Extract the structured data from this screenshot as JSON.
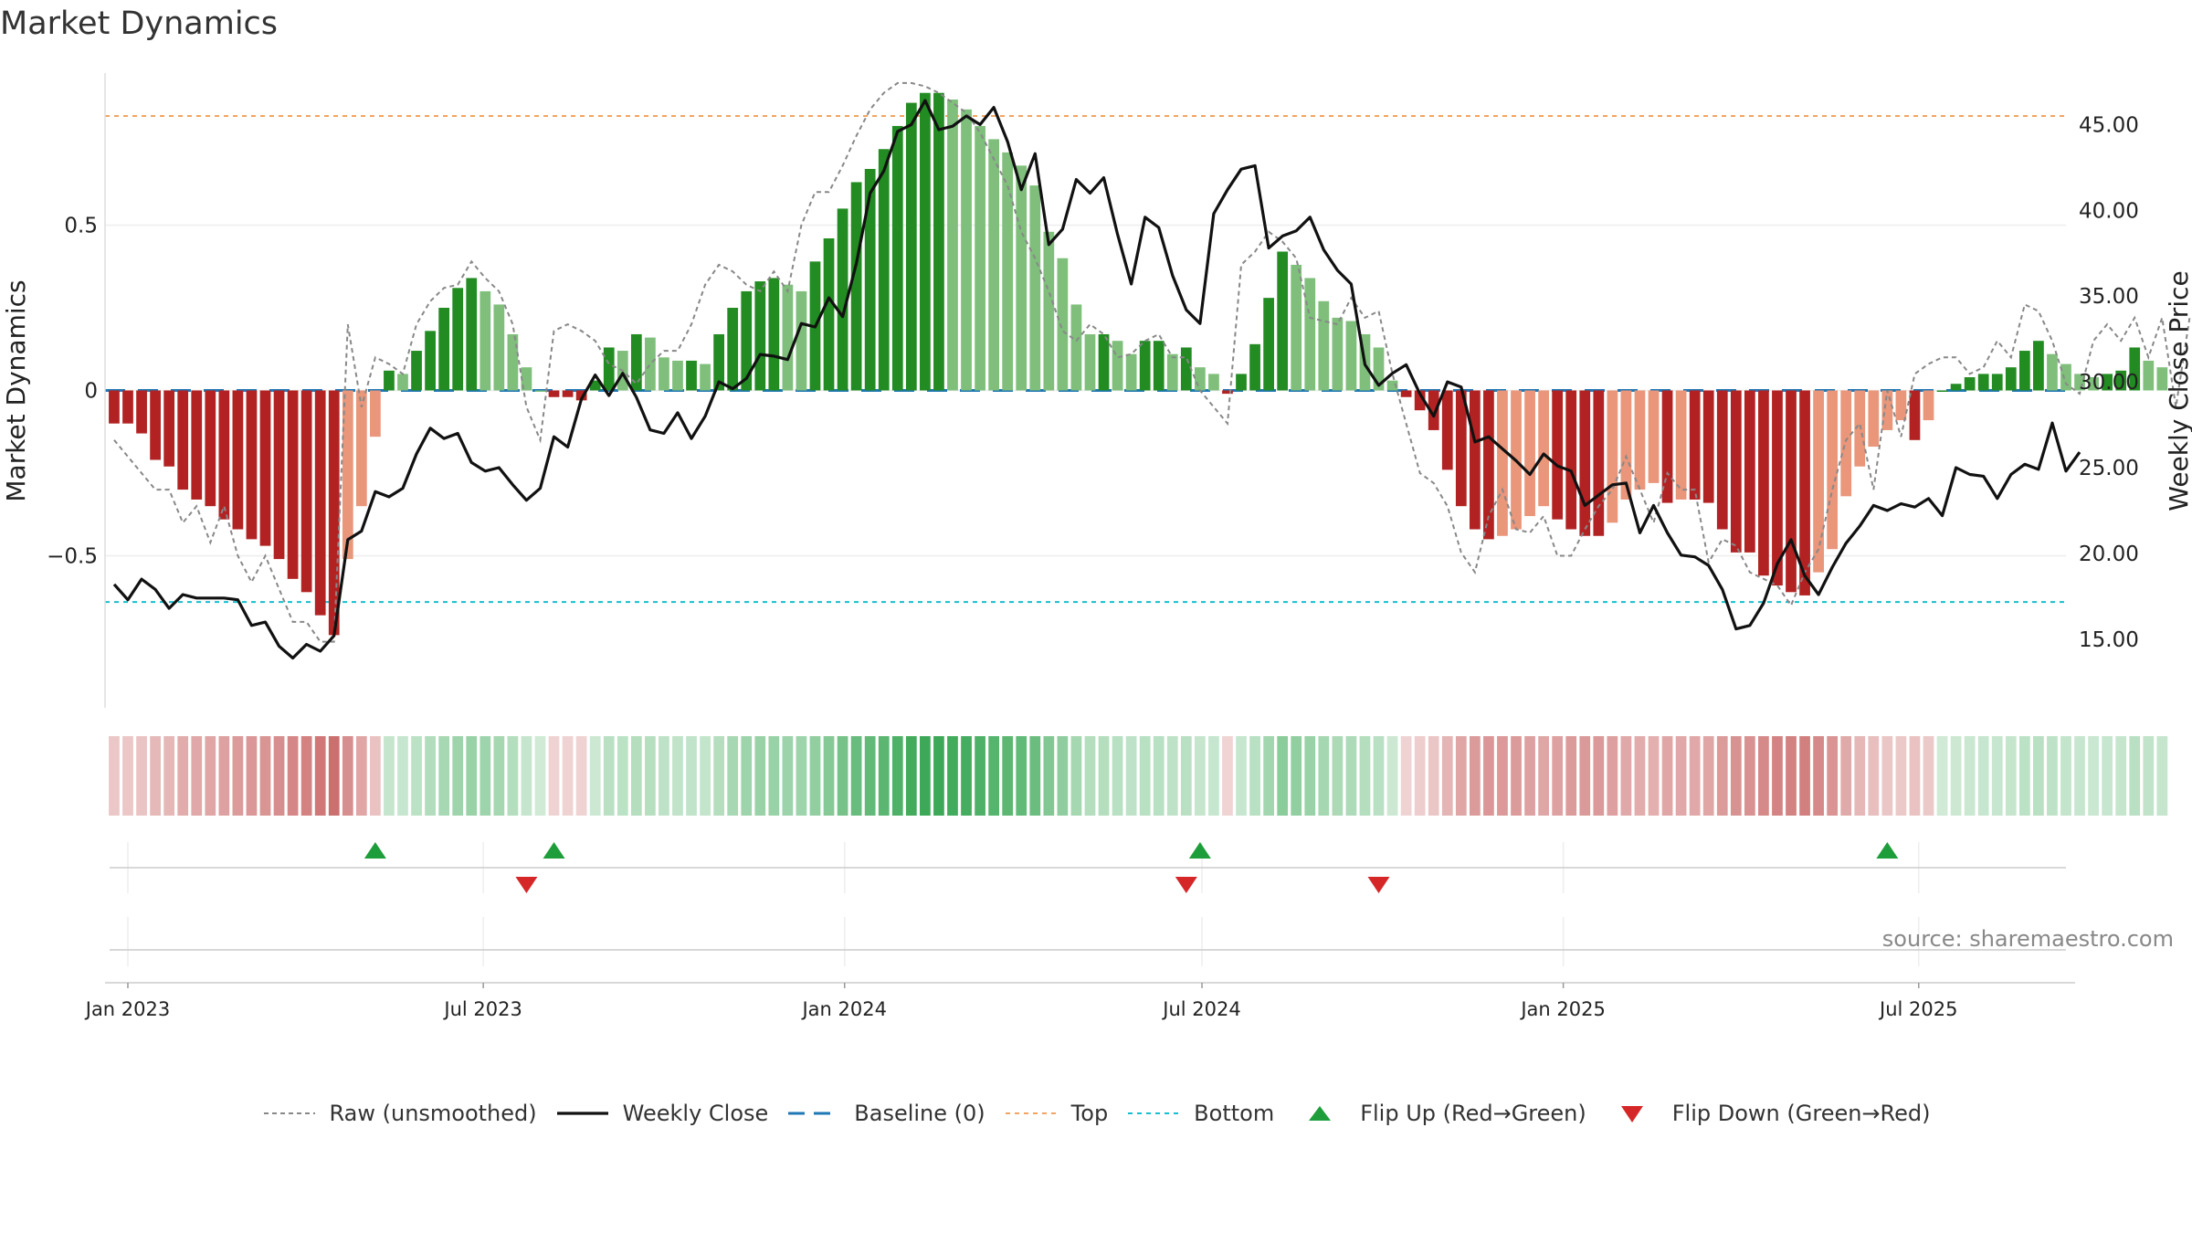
{
  "chart_data": {
    "type": "bar",
    "title": "Market Dynamics",
    "ylabel_left": "Market Dynamics",
    "ylabel_right": "Weekly Close Price",
    "source": "source: sharemaestro.com",
    "left_axis": {
      "ylim": [
        -0.96,
        0.96
      ],
      "ticks": [
        0.5,
        0,
        -0.5
      ],
      "tick_labels": [
        "0.5",
        "0",
        "−0.5"
      ]
    },
    "right_axis": {
      "ylim": [
        11.0,
        48.0
      ],
      "ticks": [
        45,
        40,
        35,
        30,
        25,
        20,
        15
      ],
      "tick_labels": [
        "45.00",
        "40.00",
        "35.00",
        "30.00",
        "25.00",
        "20.00",
        "15.00"
      ]
    },
    "x_axis": {
      "start": "2023-01-01",
      "end": "2025-09-14",
      "ticks": [
        {
          "date": "2023-01-01",
          "label": "Jan 2023"
        },
        {
          "date": "2023-07-01",
          "label": "Jul 2023"
        },
        {
          "date": "2024-01-01",
          "label": "Jan 2024"
        },
        {
          "date": "2024-07-01",
          "label": "Jul 2024"
        },
        {
          "date": "2025-01-01",
          "label": "Jan 2025"
        },
        {
          "date": "2025-07-01",
          "label": "Jul 2025"
        }
      ]
    },
    "first_week": "2022-12-25",
    "week_step_days": 7,
    "top_level": 0.83,
    "bottom_level": -0.64,
    "baseline": 0,
    "momentum": [
      -0.1,
      -0.1,
      -0.13,
      -0.21,
      -0.23,
      -0.3,
      -0.33,
      -0.35,
      -0.39,
      -0.42,
      -0.45,
      -0.47,
      -0.51,
      -0.57,
      -0.61,
      -0.68,
      -0.74,
      -0.51,
      -0.35,
      -0.14,
      0.06,
      0.05,
      0.12,
      0.18,
      0.25,
      0.31,
      0.34,
      0.3,
      0.26,
      0.17,
      0.07,
      0.0,
      -0.02,
      -0.02,
      -0.03,
      0.03,
      0.13,
      0.12,
      0.17,
      0.16,
      0.1,
      0.09,
      0.09,
      0.08,
      0.17,
      0.25,
      0.3,
      0.33,
      0.34,
      0.32,
      0.3,
      0.39,
      0.46,
      0.55,
      0.63,
      0.67,
      0.73,
      0.8,
      0.87,
      0.9,
      0.9,
      0.88,
      0.85,
      0.8,
      0.76,
      0.72,
      0.68,
      0.62,
      0.48,
      0.4,
      0.26,
      0.17,
      0.17,
      0.15,
      0.11,
      0.15,
      0.15,
      0.11,
      0.13,
      0.07,
      0.05,
      -0.01,
      0.05,
      0.14,
      0.28,
      0.42,
      0.38,
      0.34,
      0.27,
      0.22,
      0.21,
      0.17,
      0.13,
      0.03,
      -0.02,
      -0.06,
      -0.12,
      -0.24,
      -0.35,
      -0.42,
      -0.45,
      -0.44,
      -0.42,
      -0.38,
      -0.35,
      -0.39,
      -0.42,
      -0.44,
      -0.44,
      -0.4,
      -0.33,
      -0.3,
      -0.28,
      -0.34,
      -0.33,
      -0.33,
      -0.34,
      -0.42,
      -0.49,
      -0.49,
      -0.56,
      -0.59,
      -0.61,
      -0.62,
      -0.55,
      -0.48,
      -0.32,
      -0.23,
      -0.17,
      -0.12,
      -0.09,
      -0.15,
      -0.09,
      0.0,
      0.02,
      0.04,
      0.05,
      0.05,
      0.07,
      0.12,
      0.15,
      0.11,
      0.08,
      0.05,
      0.04,
      0.05,
      0.06,
      0.13,
      0.09,
      0.07
    ],
    "raw": [
      -0.15,
      -0.2,
      -0.25,
      -0.3,
      -0.3,
      -0.4,
      -0.35,
      -0.46,
      -0.35,
      -0.5,
      -0.58,
      -0.5,
      -0.6,
      -0.7,
      -0.7,
      -0.76,
      -0.76,
      0.2,
      -0.05,
      0.1,
      0.08,
      0.05,
      0.2,
      0.27,
      0.31,
      0.32,
      0.39,
      0.34,
      0.3,
      0.2,
      -0.05,
      -0.15,
      0.18,
      0.2,
      0.18,
      0.15,
      0.08,
      0.06,
      0.02,
      0.08,
      0.12,
      0.12,
      0.2,
      0.32,
      0.38,
      0.36,
      0.32,
      0.3,
      0.36,
      0.3,
      0.5,
      0.6,
      0.6,
      0.68,
      0.77,
      0.85,
      0.9,
      0.93,
      0.93,
      0.92,
      0.9,
      0.87,
      0.84,
      0.78,
      0.7,
      0.62,
      0.48,
      0.4,
      0.3,
      0.18,
      0.15,
      0.2,
      0.17,
      0.1,
      0.11,
      0.15,
      0.17,
      0.1,
      0.1,
      0.0,
      -0.05,
      -0.1,
      0.38,
      0.42,
      0.48,
      0.45,
      0.4,
      0.22,
      0.21,
      0.2,
      0.28,
      0.22,
      0.24,
      0.05,
      -0.1,
      -0.25,
      -0.28,
      -0.35,
      -0.49,
      -0.55,
      -0.38,
      -0.3,
      -0.42,
      -0.43,
      -0.38,
      -0.5,
      -0.5,
      -0.42,
      -0.35,
      -0.3,
      -0.2,
      -0.3,
      -0.4,
      -0.25,
      -0.3,
      -0.3,
      -0.52,
      -0.45,
      -0.47,
      -0.55,
      -0.57,
      -0.59,
      -0.65,
      -0.55,
      -0.48,
      -0.3,
      -0.15,
      -0.1,
      -0.3,
      0.0,
      -0.14,
      0.05,
      0.08,
      0.1,
      0.1,
      0.05,
      0.07,
      0.15,
      0.1,
      0.26,
      0.24,
      0.15,
      0.02,
      -0.01,
      0.15,
      0.2,
      0.15,
      0.22,
      0.1,
      0.22,
      -0.05,
      0.22
    ],
    "close": [
      18.2,
      17.3,
      18.5,
      17.9,
      16.8,
      17.6,
      17.4,
      17.4,
      17.4,
      17.3,
      15.8,
      16.0,
      14.6,
      13.9,
      14.7,
      14.3,
      15.2,
      20.8,
      21.3,
      23.6,
      23.3,
      23.8,
      25.8,
      27.3,
      26.7,
      27.0,
      25.3,
      24.8,
      25.0,
      24.0,
      23.1,
      23.8,
      26.8,
      26.2,
      29.0,
      30.4,
      29.2,
      30.5,
      29.1,
      27.2,
      27.0,
      28.2,
      26.7,
      28.0,
      30.0,
      29.6,
      30.2,
      31.6,
      31.5,
      31.3,
      33.4,
      33.2,
      34.9,
      33.8,
      36.9,
      41.0,
      42.3,
      44.6,
      45.0,
      46.4,
      44.7,
      44.9,
      45.5,
      45.0,
      46.0,
      44.0,
      41.2,
      43.3,
      38.0,
      38.9,
      41.8,
      41.0,
      41.9,
      38.6,
      35.7,
      39.6,
      39.0,
      36.2,
      34.2,
      33.4,
      39.8,
      41.2,
      42.4,
      42.6,
      37.8,
      38.5,
      38.8,
      39.6,
      37.7,
      36.5,
      35.7,
      31.0,
      29.8,
      30.5,
      31.0,
      29.3,
      28.0,
      30.0,
      29.7,
      26.5,
      26.8,
      26.1,
      25.4,
      24.6,
      25.8,
      25.1,
      24.8,
      22.8,
      23.4,
      24.0,
      24.1,
      21.2,
      22.8,
      21.2,
      19.9,
      19.8,
      19.3,
      17.9,
      15.6,
      15.8,
      17.1,
      19.4,
      20.8,
      18.7,
      17.6,
      19.2,
      20.6,
      21.6,
      22.8,
      22.5,
      22.9,
      22.7,
      23.2,
      22.2,
      25.0,
      24.6,
      24.5,
      23.2,
      24.6,
      25.2,
      24.9,
      27.6,
      24.8,
      25.9
    ],
    "strip_intensity_note": "strip bars shade by momentum sign and magnitude",
    "flip_up_dates": [
      "2023-05-07",
      "2023-08-06",
      "2024-06-30",
      "2025-06-15"
    ],
    "flip_down_dates": [
      "2023-07-23",
      "2024-06-23",
      "2024-09-29"
    ],
    "colors": {
      "green_strong": "#228B22",
      "green_light": "#7FBF7B",
      "red_strong": "#B22222",
      "red_light": "#E9967A",
      "raw_line": "#888888",
      "close_line": "#111111",
      "baseline": "#1F77B4",
      "top": "#F4A460",
      "bottom": "#17BECF",
      "flip_up": "#1E9E3A",
      "flip_down": "#D62728"
    },
    "legend": [
      {
        "key": "raw",
        "label": "Raw (unsmoothed)"
      },
      {
        "key": "close",
        "label": "Weekly Close"
      },
      {
        "key": "baseline",
        "label": "Baseline (0)"
      },
      {
        "key": "top",
        "label": "Top"
      },
      {
        "key": "bottom",
        "label": "Bottom"
      },
      {
        "key": "flip_up",
        "label": "Flip Up (Red→Green)"
      },
      {
        "key": "flip_down",
        "label": "Flip Down (Green→Red)"
      }
    ]
  }
}
